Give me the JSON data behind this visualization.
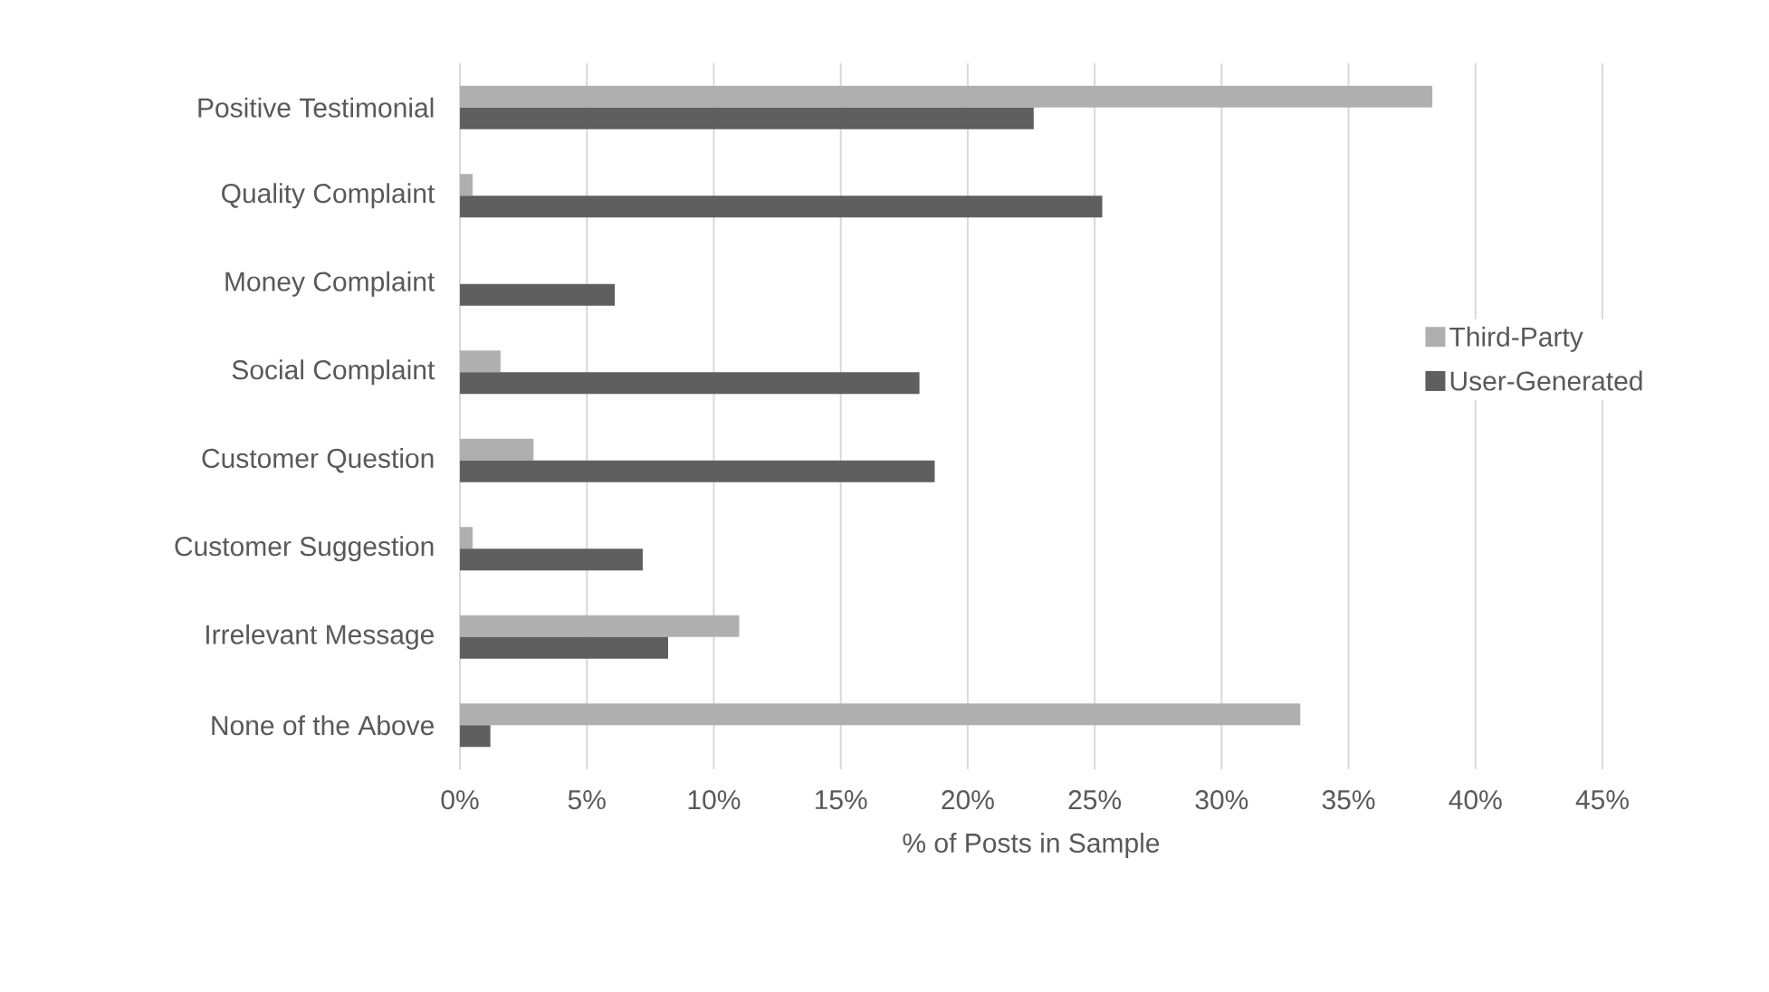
{
  "chart_data": {
    "type": "bar",
    "orientation": "horizontal",
    "xlabel": "% of Posts in Sample",
    "categories": [
      "Positive Testimonial",
      "Quality Complaint",
      "Money Complaint",
      "Social Complaint",
      "Customer Question",
      "Customer Suggestion",
      "Irrelevant Message",
      "None of the Above"
    ],
    "series": [
      {
        "name": "Third-Party",
        "color": "#afafaf",
        "values": [
          38.3,
          0.5,
          null,
          1.6,
          2.9,
          0.5,
          11.0,
          33.1
        ]
      },
      {
        "name": "User-Generated",
        "color": "#5f5f5f",
        "values": [
          22.6,
          25.3,
          6.1,
          18.1,
          18.7,
          7.2,
          8.2,
          1.2
        ]
      }
    ],
    "xlim": [
      0,
      45
    ],
    "xticks": [
      {
        "value": 0,
        "label": "0%"
      },
      {
        "value": 5,
        "label": "5%"
      },
      {
        "value": 10,
        "label": "10%"
      },
      {
        "value": 15,
        "label": "15%"
      },
      {
        "value": 20,
        "label": "20%"
      },
      {
        "value": 25,
        "label": "25%"
      },
      {
        "value": 30,
        "label": "30%"
      },
      {
        "value": 35,
        "label": "35%"
      },
      {
        "value": 40,
        "label": "40%"
      },
      {
        "value": 45,
        "label": "45%"
      }
    ],
    "grid": "x",
    "legend": "right"
  }
}
